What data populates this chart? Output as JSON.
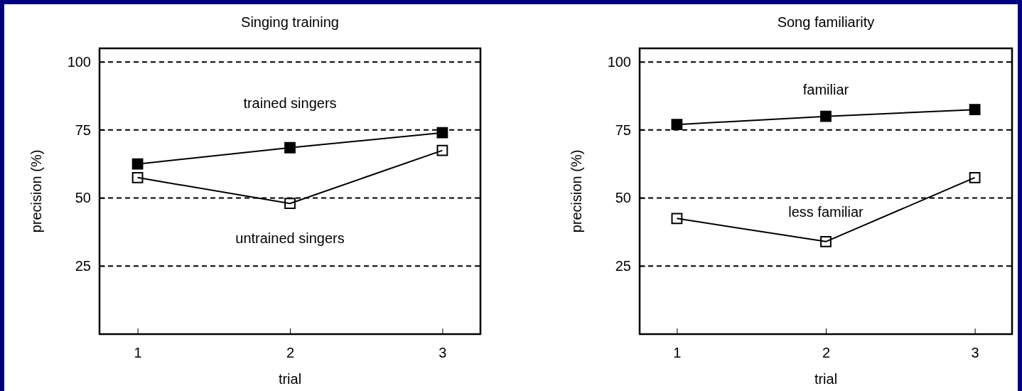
{
  "chart_data": [
    {
      "type": "line",
      "title": "Singing training",
      "xlabel": "trial",
      "ylabel": "precision (%)",
      "x": [
        1,
        2,
        3
      ],
      "xlim": [
        0.75,
        3.25
      ],
      "xticks": [
        1,
        2,
        3
      ],
      "ylim": [
        0,
        105
      ],
      "yticks": [
        25,
        50,
        75,
        100
      ],
      "grid": "y",
      "marker": "square",
      "line_style": "solid",
      "series": [
        {
          "name": "trained singers",
          "color": "#000000",
          "values": [
            62.5,
            68.5,
            74
          ]
        },
        {
          "name": "untrained singers",
          "color": "#000000",
          "values": [
            57.5,
            48,
            67.5
          ]
        }
      ]
    },
    {
      "type": "line",
      "title": "Song familiarity",
      "xlabel": "trial",
      "ylabel": "precision (%)",
      "x": [
        1,
        2,
        3
      ],
      "xlim": [
        0.75,
        3.25
      ],
      "xticks": [
        1,
        2,
        3
      ],
      "ylim": [
        0,
        105
      ],
      "yticks": [
        25,
        50,
        75,
        100
      ],
      "grid": "y",
      "marker": "square",
      "line_style": "solid",
      "series": [
        {
          "name": "familiar",
          "color": "#000000",
          "values": [
            77,
            80,
            82.5
          ]
        },
        {
          "name": "less familiar",
          "color": "#000000",
          "values": [
            42.5,
            34,
            57.5
          ]
        }
      ]
    }
  ]
}
